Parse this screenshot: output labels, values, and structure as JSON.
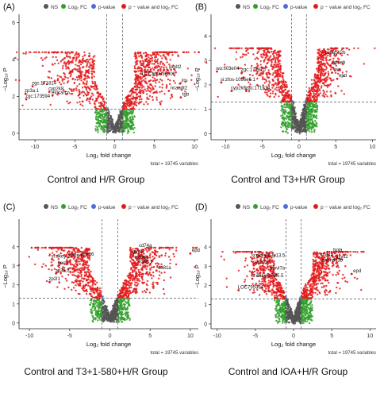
{
  "chart_data": [
    {
      "type": "scatter",
      "panel_label": "(A)",
      "caption": "Control and H/R Group",
      "xlabel": "Log₂ fold change",
      "ylabel": "−Log₁₀ P",
      "xlim": [
        -12,
        10.5
      ],
      "ylim": [
        -0.35,
        6.2
      ],
      "xticks": [
        -10,
        -5,
        0,
        5,
        10
      ],
      "yticks": [
        0,
        2,
        4,
        6
      ],
      "fc_cutoff": 1,
      "p_cutoff": 1.3,
      "total_text": "total = 19745 variables",
      "point_count": 1600,
      "spread": {
        "left": 10.5,
        "right": 9.5,
        "ymax": 4.4
      },
      "legend": [
        "NS",
        "Log₂ FC",
        "p-value",
        "p − value and log₂ FC"
      ],
      "labels": [
        {
          "text": "gxylt2",
          "x": 6.6,
          "y": 3.45
        },
        {
          "text": "LOC100535000",
          "x": 3.2,
          "y": 3.05
        },
        {
          "text": "ins",
          "x": 8.2,
          "y": 2.7
        },
        {
          "text": "tgb",
          "x": 8.3,
          "y": 1.95
        },
        {
          "text": "ncaadt2",
          "x": 6.8,
          "y": 2.3
        },
        {
          "text": "zgc:171814",
          "x": -10.3,
          "y": 2.55
        },
        {
          "text": "zp3a.1",
          "x": -11.2,
          "y": 2.15
        },
        {
          "text": "cyp2k8",
          "x": -8.2,
          "y": 2.25
        },
        {
          "text": "zgc:173594",
          "x": -11.1,
          "y": 1.85
        },
        {
          "text": "elocarcn",
          "x": -7.8,
          "y": 2.05
        }
      ]
    },
    {
      "type": "scatter",
      "panel_label": "(B)",
      "caption": "Control and T3+H/R Group",
      "xlabel": "Log₂ fold change",
      "ylabel": "−Log₁₀ P",
      "xlim": [
        -12,
        10.5
      ],
      "ylim": [
        -0.25,
        4.7
      ],
      "xticks": [
        -10,
        -5,
        0,
        5,
        10
      ],
      "yticks": [
        0,
        1,
        2,
        3,
        4
      ],
      "fc_cutoff": 1,
      "p_cutoff": 1.3,
      "total_text": "total = 19745 variables",
      "point_count": 1600,
      "spread": {
        "left": 9,
        "right": 7,
        "ymax": 3.5
      },
      "legend": [
        "NS",
        "Log₂ FC",
        "p-value",
        "p − value and log₂ FC"
      ],
      "labels": [
        {
          "text": "baiap2l2b",
          "x": 3.3,
          "y": 3.2
        },
        {
          "text": "apoeb",
          "x": 4.3,
          "y": 2.8
        },
        {
          "text": "ins",
          "x": 4.5,
          "y": 2.5
        },
        {
          "text": "epd",
          "x": 5.2,
          "y": 2.25
        },
        {
          "text": "wu:fi03e04",
          "x": -11.2,
          "y": 2.55
        },
        {
          "text": "zgc:171815",
          "x": -7.8,
          "y": 2.5
        },
        {
          "text": "si:zfos-1056e6.1",
          "x": -10.6,
          "y": 2.1
        },
        {
          "text": "cyp2k8",
          "x": -9.2,
          "y": 1.75
        },
        {
          "text": "zgc:171814",
          "x": -7.2,
          "y": 1.75
        }
      ]
    },
    {
      "type": "scatter",
      "panel_label": "(C)",
      "caption": "Control and T3+1-580+H/R Group",
      "xlabel": "Log₂ fold change",
      "ylabel": "−Log₁₀ P",
      "xlim": [
        -11.3,
        11
      ],
      "ylim": [
        -0.3,
        5.2
      ],
      "xticks": [
        -10,
        -5,
        0,
        5,
        10
      ],
      "yticks": [
        0,
        1,
        2,
        3,
        4
      ],
      "fc_cutoff": 1,
      "p_cutoff": 1.3,
      "total_text": "total = 19745 variables",
      "point_count": 1600,
      "spread": {
        "left": 9,
        "right": 8.5,
        "ymax": 3.95
      },
      "legend": [
        "NS",
        "Log₂ FC",
        "p-value",
        "p − value and log₂ FC"
      ],
      "labels": [
        {
          "text": "cd74a",
          "x": 3.4,
          "y": 3.9
        },
        {
          "text": "gxylt2",
          "x": 2.6,
          "y": 3.6
        },
        {
          "text": "apoeb",
          "x": 2.9,
          "y": 3.3
        },
        {
          "text": "scel8.1",
          "x": 3.2,
          "y": 3.05
        },
        {
          "text": "cd81a",
          "x": 5.8,
          "y": 2.75
        },
        {
          "text": "epd",
          "x": 10.0,
          "y": 3.65
        },
        {
          "text": "si:dkey-179l5.5",
          "x": -7.2,
          "y": 3.35
        },
        {
          "text": "dhx36",
          "x": -3.5,
          "y": 3.45
        },
        {
          "text": "loxo1",
          "x": -6.4,
          "y": 3.0
        },
        {
          "text": "zp3a.2",
          "x": -6.7,
          "y": 2.6
        },
        {
          "text": "zp2l1",
          "x": -7.5,
          "y": 2.15
        }
      ]
    },
    {
      "type": "scatter",
      "panel_label": "(D)",
      "caption": "Control and IOA+H/R Group",
      "xlabel": "Log₂ fold change",
      "ylabel": "−Log₁₀ P",
      "xlim": [
        -10.8,
        10.8
      ],
      "ylim": [
        -0.25,
        5.2
      ],
      "xticks": [
        -10,
        -5,
        0,
        5,
        10
      ],
      "yticks": [
        0,
        1,
        2,
        3,
        4
      ],
      "fc_cutoff": 1,
      "p_cutoff": 1.3,
      "total_text": "total = 19745 variables",
      "point_count": 1600,
      "spread": {
        "left": 8,
        "right": 7.5,
        "ymax": 3.75
      },
      "legend": [
        "NS",
        "Log₂ FC",
        "p-value",
        "p − value and log₂ FC"
      ],
      "labels": [
        {
          "text": "bola",
          "x": 5.0,
          "y": 3.7
        },
        {
          "text": "cd81a",
          "x": 3.3,
          "y": 3.45
        },
        {
          "text": "gxylt2",
          "x": 5.3,
          "y": 3.35
        },
        {
          "text": "mamdc2b",
          "x": 3.5,
          "y": 3.15
        },
        {
          "text": "epd",
          "x": 7.6,
          "y": 2.6
        },
        {
          "text": "si:dkey-43p13.5",
          "x": -5.4,
          "y": 3.4
        },
        {
          "text": "cyp17a1",
          "x": -5.2,
          "y": 3.05
        },
        {
          "text": "elovl7a",
          "x": -3.0,
          "y": 2.75
        },
        {
          "text": "si:dkey-179l5.5",
          "x": -5.4,
          "y": 2.35
        },
        {
          "text": "LOC795984",
          "x": -7.2,
          "y": 1.75
        }
      ]
    }
  ],
  "colors": {
    "ns": "#555555",
    "fc": "#31a02c",
    "pval": "#4e6ed6",
    "both": "#e41a1c",
    "axis": "#222222",
    "dash": "#333333",
    "zero_grid": "#dddddd"
  },
  "icons": [
    "ns-legend-dot",
    "log2fc-legend-dot",
    "pvalue-legend-dot",
    "both-legend-dot"
  ]
}
